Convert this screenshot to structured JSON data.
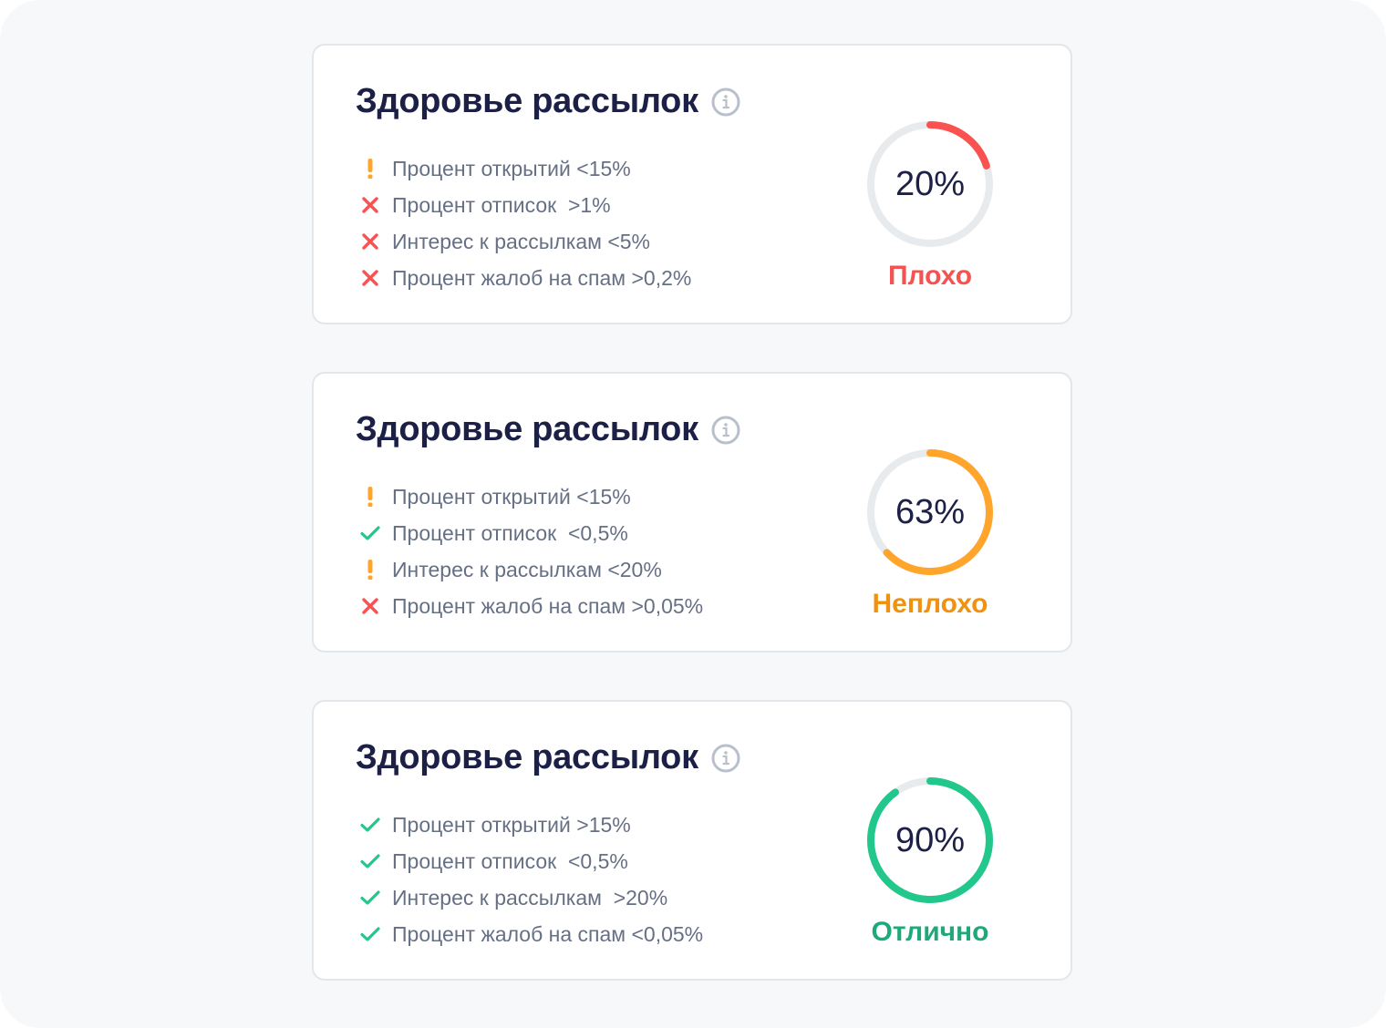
{
  "colors": {
    "bad": "#fa5151",
    "warn": "#ffa52b",
    "good": "#22c78c",
    "track": "#e8ebee",
    "title": "#1c2046",
    "text": "#667085"
  },
  "cards": [
    {
      "title": "Здоровье рассылок",
      "info_icon": "info-circle-icon",
      "items": [
        {
          "status": "warning",
          "icon": "exclamation-icon",
          "text": "Процент открытий <15%"
        },
        {
          "status": "bad",
          "icon": "cross-icon",
          "text": "Процент отписок  >1%"
        },
        {
          "status": "bad",
          "icon": "cross-icon",
          "text": "Интерес к рассылкам <5%"
        },
        {
          "status": "bad",
          "icon": "cross-icon",
          "text": "Процент жалоб на спам >0,2%"
        }
      ],
      "score_value": 20,
      "score_text": "20%",
      "score_label": "Плохо",
      "score_color": "#fa5151",
      "label_color": "#f55252"
    },
    {
      "title": "Здоровье рассылок",
      "info_icon": "info-circle-icon",
      "items": [
        {
          "status": "warning",
          "icon": "exclamation-icon",
          "text": "Процент открытий <15%"
        },
        {
          "status": "good",
          "icon": "check-icon",
          "text": "Процент отписок  <0,5%"
        },
        {
          "status": "warning",
          "icon": "exclamation-icon",
          "text": "Интерес к рассылкам <20%"
        },
        {
          "status": "bad",
          "icon": "cross-icon",
          "text": "Процент жалоб на спам >0,05%"
        }
      ],
      "score_value": 63,
      "score_text": "63%",
      "score_label": "Неплохо",
      "score_color": "#ffa52b",
      "label_color": "#f0920f"
    },
    {
      "title": "Здоровье рассылок",
      "info_icon": "info-circle-icon",
      "items": [
        {
          "status": "good",
          "icon": "check-icon",
          "text": "Процент открытий >15%"
        },
        {
          "status": "good",
          "icon": "check-icon",
          "text": "Процент отписок  <0,5%"
        },
        {
          "status": "good",
          "icon": "check-icon",
          "text": "Интерес к рассылкам  >20%"
        },
        {
          "status": "good",
          "icon": "check-icon",
          "text": "Процент жалоб на спам <0,05%"
        }
      ],
      "score_value": 90,
      "score_text": "90%",
      "score_label": "Отлично",
      "score_color": "#22c78c",
      "label_color": "#1fa97a"
    }
  ]
}
